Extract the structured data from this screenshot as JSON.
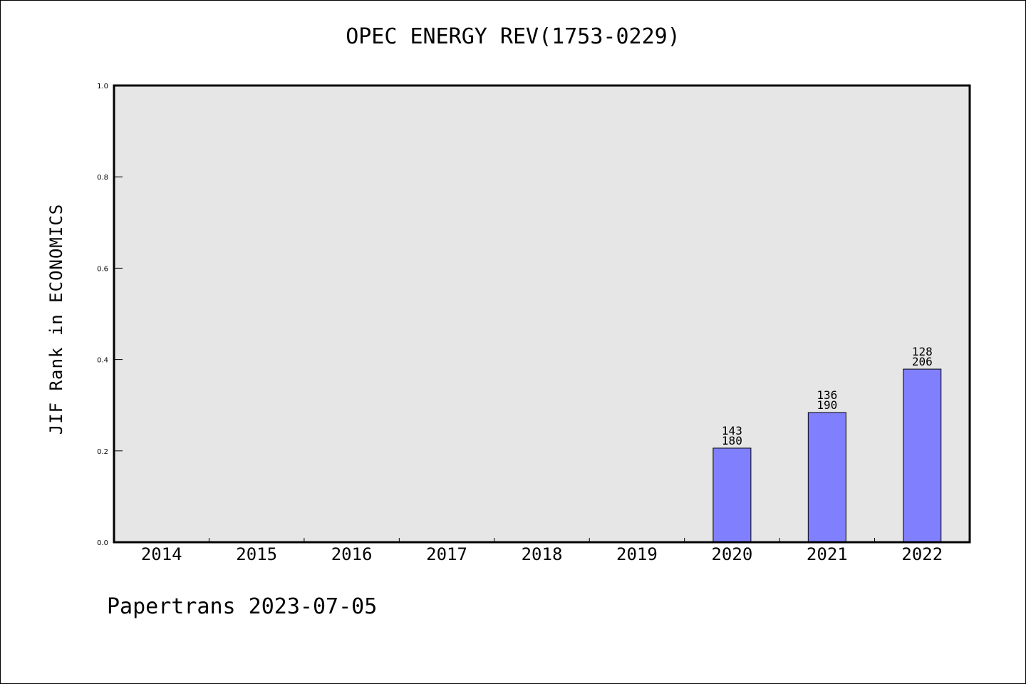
{
  "chart_data": {
    "type": "bar",
    "title": "OPEC ENERGY REV(1753-0229)",
    "ylabel": "JIF Rank in ECONOMICS",
    "xlabel": "",
    "ylim": [
      0.0,
      1.0
    ],
    "yticks": [
      "0.0",
      "0.2",
      "0.4",
      "0.6",
      "0.8",
      "1.0"
    ],
    "categories": [
      "2014",
      "2015",
      "2016",
      "2017",
      "2018",
      "2019",
      "2020",
      "2021",
      "2022"
    ],
    "values": [
      null,
      null,
      null,
      null,
      null,
      null,
      0.206,
      0.284,
      0.379
    ],
    "labels": [
      null,
      null,
      null,
      null,
      null,
      null,
      {
        "rank": "143",
        "total": "180"
      },
      {
        "rank": "136",
        "total": "190"
      },
      {
        "rank": "128",
        "total": "206"
      }
    ],
    "colors": {
      "bar": "#8080ff",
      "plot_bg": "#e6e6e6",
      "axis": "#000000"
    },
    "grid": false,
    "legend": "none"
  },
  "footer": "Papertrans 2023-07-05"
}
